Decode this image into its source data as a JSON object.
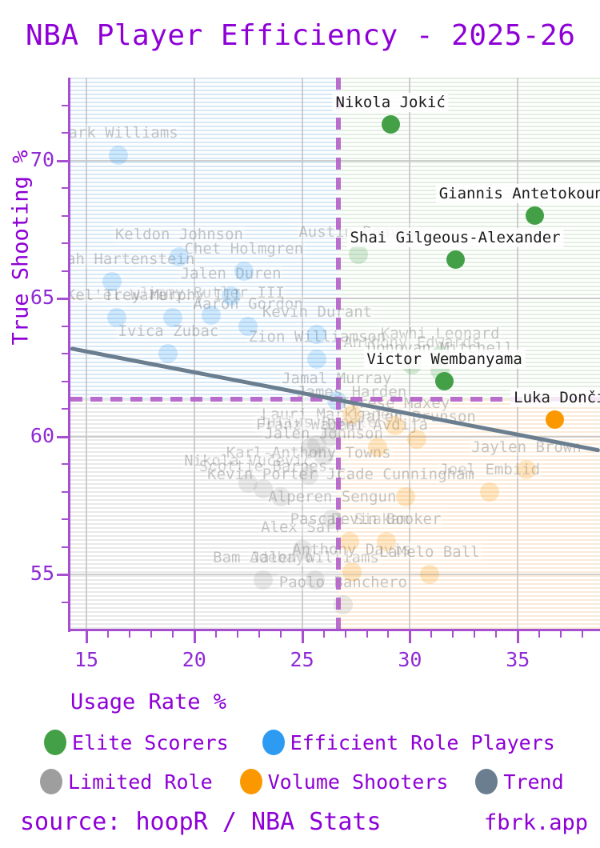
{
  "title": "NBA Player Efficiency - 2025-26",
  "axes": {
    "x_label": "Usage Rate %",
    "y_label": "True Shooting %",
    "x_major_ticks": [
      15,
      20,
      25,
      30,
      35
    ],
    "y_major_ticks": [
      55,
      60,
      65,
      70
    ]
  },
  "colors": {
    "title_purple": "#8E00D6",
    "axis_purple": "#A64FD0",
    "threshold_purple": "#B35FC9",
    "elite": "#43A047",
    "efficient": "#2E9BF3",
    "limited": "#9E9E9E",
    "volume": "#FB9800",
    "trend": "#6A7E8F"
  },
  "legend": {
    "rows": [
      [
        {
          "label": "Elite Scorers",
          "color": "#43A047"
        },
        {
          "label": "Efficient Role Players",
          "color": "#2E9BF3"
        }
      ],
      [
        {
          "label": "Limited Role",
          "color": "#9E9E9E"
        },
        {
          "label": "Volume Shooters",
          "color": "#FB9800"
        },
        {
          "label": "Trend",
          "color": "#6A7E8F"
        }
      ]
    ]
  },
  "footer": {
    "source": "source: hoopR / NBA Stats",
    "brand": "fbrk.app"
  },
  "chart_data": {
    "type": "scatter",
    "title": "NBA Player Efficiency - 2025-26",
    "xlabel": "Usage Rate %",
    "ylabel": "True Shooting %",
    "xlim": [
      14.26,
      38.81
    ],
    "ylim": [
      53.03,
      73.0
    ],
    "grid": true,
    "quadrant_split": {
      "usage": 26.67,
      "true_shooting": 61.35
    },
    "trend": {
      "x1": 14.26,
      "y1": 63.2,
      "x2": 38.81,
      "y2": 59.5
    },
    "series": [
      {
        "name": "Elite Scorers",
        "color": "#43A047",
        "key": "elite",
        "points": [
          {
            "name": "Nikola Jokić",
            "usage": 29.1,
            "ts": 71.3,
            "highlight": true
          },
          {
            "name": "Giannis Antetokounmpo",
            "usage": 35.8,
            "ts": 68.0,
            "highlight": true
          },
          {
            "name": "Shai Gilgeous-Alexander",
            "usage": 32.1,
            "ts": 66.4,
            "highlight": true
          },
          {
            "name": "Victor Wembanyama",
            "usage": 31.6,
            "ts": 62.0,
            "highlight": true
          },
          {
            "name": "Austin Reaves",
            "usage": 27.6,
            "ts": 66.6
          },
          {
            "name": "Kawhi Leonard",
            "usage": 31.4,
            "ts": 62.9
          },
          {
            "name": "Anthony Edwards",
            "usage": 30.1,
            "ts": 62.6
          },
          {
            "name": "Donovan Mitchell",
            "usage": 31.4,
            "ts": 62.4
          }
        ]
      },
      {
        "name": "Efficient Role Players",
        "color": "#2E9BF3",
        "key": "efficient",
        "points": [
          {
            "name": "Mark Williams",
            "usage": 16.5,
            "ts": 70.2
          },
          {
            "name": "Keldon Johnson",
            "usage": 19.3,
            "ts": 66.5
          },
          {
            "name": "Chet Holmgren",
            "usage": 22.3,
            "ts": 66.0
          },
          {
            "name": "Isaiah Hartenstein",
            "usage": 16.2,
            "ts": 65.6
          },
          {
            "name": "Jalen Duren",
            "usage": 21.7,
            "ts": 65.1
          },
          {
            "name": "Jimmy Butler III",
            "usage": 20.8,
            "ts": 64.4
          },
          {
            "name": "Kel'el Ware",
            "usage": 16.4,
            "ts": 64.3
          },
          {
            "name": "Trey Murphy III",
            "usage": 19.0,
            "ts": 64.3
          },
          {
            "name": "Aaron Gordon",
            "usage": 22.5,
            "ts": 64.0
          },
          {
            "name": "Kevin Durant",
            "usage": 25.7,
            "ts": 63.7
          },
          {
            "name": "Ivica Zubac",
            "usage": 18.8,
            "ts": 63.0
          },
          {
            "name": "Zion Williamson",
            "usage": 25.7,
            "ts": 62.8
          },
          {
            "name": "Jamal Murray",
            "usage": 26.6,
            "ts": 61.3
          }
        ]
      },
      {
        "name": "Limited Role",
        "color": "#9E9E9E",
        "key": "limited",
        "points": [
          {
            "name": "Lauri Markkanen",
            "usage": 26.3,
            "ts": 60.0
          },
          {
            "name": "Julius Randle",
            "usage": 25.7,
            "ts": 59.7
          },
          {
            "name": "Franz Wagner",
            "usage": 25.4,
            "ts": 59.6
          },
          {
            "name": "Jalen Johnson",
            "usage": 26.0,
            "ts": 59.3
          },
          {
            "name": "Karl-Anthony Towns",
            "usage": 25.3,
            "ts": 58.6
          },
          {
            "name": "Nikola Vučević",
            "usage": 22.5,
            "ts": 58.3
          },
          {
            "name": "Scottie Barnes",
            "usage": 23.2,
            "ts": 58.1
          },
          {
            "name": "Kevin Porter Jr.",
            "usage": 24.0,
            "ts": 57.8
          },
          {
            "name": "Alperen Sengun",
            "usage": 26.4,
            "ts": 57.0
          },
          {
            "name": "Alex Sarr",
            "usage": 25.0,
            "ts": 55.9
          },
          {
            "name": "Bam Adebayo",
            "usage": 23.2,
            "ts": 54.8
          },
          {
            "name": "Jalen Williams",
            "usage": 25.6,
            "ts": 54.8
          },
          {
            "name": "Paolo Banchero",
            "usage": 26.9,
            "ts": 53.9
          }
        ]
      },
      {
        "name": "Volume Shooters",
        "color": "#FB9800",
        "key": "volume",
        "points": [
          {
            "name": "Luka Dončić",
            "usage": 36.7,
            "ts": 60.6,
            "highlight": true,
            "label_dx": 12
          },
          {
            "name": "James Harden",
            "usage": 27.3,
            "ts": 60.8
          },
          {
            "name": "Tyrese Maxey",
            "usage": 29.3,
            "ts": 60.4
          },
          {
            "name": "Jalen Brunson",
            "usage": 30.3,
            "ts": 59.9
          },
          {
            "name": "Deni Avdija",
            "usage": 28.5,
            "ts": 59.6
          },
          {
            "name": "Jaylen Brown",
            "usage": 35.4,
            "ts": 58.8
          },
          {
            "name": "Joel Embiid",
            "usage": 33.7,
            "ts": 58.0
          },
          {
            "name": "Cade Cunningham",
            "usage": 29.8,
            "ts": 57.8
          },
          {
            "name": "Pascal Siakam",
            "usage": 27.2,
            "ts": 56.2
          },
          {
            "name": "Devin Booker",
            "usage": 28.9,
            "ts": 56.2
          },
          {
            "name": "Anthony Davis",
            "usage": 27.3,
            "ts": 55.1
          },
          {
            "name": "LaMelo Ball",
            "usage": 30.9,
            "ts": 55.0
          }
        ]
      }
    ]
  }
}
